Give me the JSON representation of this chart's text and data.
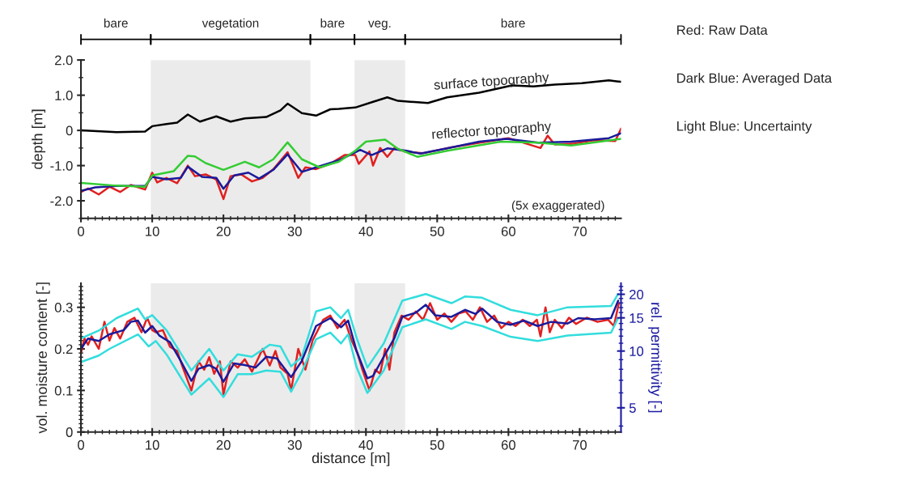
{
  "chart_data": [
    {
      "type": "line",
      "ylabel": "depth [m]",
      "xlim": [
        0,
        75.8
      ],
      "xticks": [
        0,
        10,
        20,
        30,
        40,
        50,
        60,
        70
      ],
      "ylim": [
        -2.5,
        2.0
      ],
      "yticks": [
        {
          "value": -2.0,
          "label": "-2.0"
        },
        {
          "value": -1.0,
          "label": "-1.0"
        },
        0,
        {
          "value": 1.0,
          "label": "1.0"
        },
        {
          "value": 2.0,
          "label": "2.0"
        }
      ],
      "bands": [
        {
          "axis": "x",
          "from": 9.8,
          "to": 32.2,
          "label": "vegetation",
          "color": "#ebebeb"
        },
        {
          "axis": "x",
          "from": 38.4,
          "to": 45.5,
          "label": "veg.",
          "color": "#ebebeb"
        }
      ],
      "annotations": [
        "bare",
        "bare",
        "bare",
        "surface topography",
        "reflector topography",
        "(5x exaggerated)"
      ],
      "series": [
        {
          "color": "#e02020",
          "x": [
            0,
            1,
            2.5,
            4,
            5.5,
            7,
            9,
            10,
            10.7,
            12,
            13.5,
            15,
            16,
            17.5,
            19,
            20,
            21,
            22.5,
            24,
            25.5,
            27,
            29,
            30.5,
            31.5,
            33,
            35,
            37,
            38.5,
            39,
            40.5,
            41,
            42,
            43,
            44,
            45.5,
            48,
            52,
            56,
            60,
            64.5,
            65.5,
            66.5,
            69,
            72,
            75,
            75.8
          ],
          "values": [
            -1.75,
            -1.65,
            -1.82,
            -1.6,
            -1.75,
            -1.55,
            -1.68,
            -1.2,
            -1.48,
            -1.35,
            -1.5,
            -1.0,
            -1.3,
            -1.25,
            -1.4,
            -1.95,
            -1.3,
            -1.25,
            -1.45,
            -1.35,
            -1.1,
            -0.62,
            -1.35,
            -1.05,
            -1.1,
            -0.95,
            -0.7,
            -0.7,
            -0.95,
            -0.6,
            -1.0,
            -0.5,
            -0.75,
            -0.5,
            -0.6,
            -0.65,
            -0.48,
            -0.35,
            -0.22,
            -0.5,
            -0.15,
            -0.4,
            -0.38,
            -0.28,
            -0.3,
            0.05
          ]
        },
        {
          "color": "#1a1a9a",
          "x": [
            0,
            2,
            5,
            9,
            10,
            12,
            14,
            15,
            17,
            19,
            20,
            21.5,
            23.5,
            25,
            27,
            29,
            31,
            33,
            36.2,
            39.2,
            40.8,
            43,
            45.7,
            47.6,
            51.4,
            55.9,
            59.7,
            64.2,
            68.8,
            74.1,
            75.8
          ],
          "values": [
            -1.72,
            -1.62,
            -1.58,
            -1.58,
            -1.32,
            -1.39,
            -1.35,
            -1.03,
            -1.32,
            -1.35,
            -1.66,
            -1.28,
            -1.2,
            -1.37,
            -1.12,
            -0.68,
            -1.18,
            -1.05,
            -0.85,
            -0.55,
            -0.7,
            -0.51,
            -0.58,
            -0.66,
            -0.51,
            -0.32,
            -0.24,
            -0.35,
            -0.32,
            -0.22,
            -0.08
          ]
        },
        {
          "color": "#33cc33",
          "x": [
            0,
            5,
            9,
            10,
            13,
            15,
            16,
            17.5,
            20,
            23,
            25,
            27,
            29,
            31,
            33.5,
            36.2,
            38.5,
            40,
            42.7,
            44.4,
            47.2,
            51.4,
            58.9,
            64.2,
            68.8,
            75.8
          ],
          "values": [
            -1.49,
            -1.57,
            -1.6,
            -1.28,
            -1.16,
            -0.72,
            -0.74,
            -0.93,
            -1.12,
            -0.89,
            -1.05,
            -0.82,
            -0.34,
            -0.82,
            -1.05,
            -0.89,
            -0.58,
            -0.32,
            -0.26,
            -0.51,
            -0.75,
            -0.58,
            -0.32,
            -0.35,
            -0.43,
            -0.24
          ]
        },
        {
          "color": "#000000",
          "x": [
            0,
            5,
            9,
            10,
            12,
            13.5,
            15,
            16.7,
            19,
            21,
            23,
            26,
            28,
            29,
            31,
            33,
            35,
            36.2,
            38.5,
            41.1,
            43,
            44.5,
            47.2,
            48.7,
            51.4,
            55.9,
            60.5,
            63.5,
            66.5,
            70.3,
            74.1,
            75.8
          ],
          "values": [
            0,
            -0.05,
            -0.03,
            0.12,
            0.18,
            0.22,
            0.45,
            0.25,
            0.4,
            0.25,
            0.34,
            0.38,
            0.57,
            0.76,
            0.49,
            0.42,
            0.6,
            0.61,
            0.65,
            0.82,
            0.94,
            0.84,
            0.8,
            0.78,
            0.94,
            1.07,
            1.28,
            1.25,
            1.3,
            1.34,
            1.42,
            1.38
          ]
        }
      ]
    },
    {
      "type": "line",
      "xlabel": "distance [m]",
      "ylabel": "vol. moisture content [-]",
      "y2label": "rel. permittivity [-]",
      "xlim": [
        0,
        75.8
      ],
      "xticks": [
        0,
        10,
        20,
        30,
        40,
        50,
        60,
        70
      ],
      "ylim": [
        0,
        0.358
      ],
      "yticks": [
        0,
        0.1,
        0.2,
        0.3
      ],
      "y2lim": [
        3.72,
        22.9
      ],
      "y2ticks": [
        5,
        10,
        15,
        20
      ],
      "log": "y2",
      "bands": [
        {
          "axis": "x",
          "from": 9.8,
          "to": 32.2,
          "color": "#ebebeb"
        },
        {
          "axis": "x",
          "from": 38.4,
          "to": 45.5,
          "color": "#ebebeb"
        }
      ],
      "series": [
        {
          "color": "#e02020",
          "x": [
            0,
            0.5,
            1,
            1.5,
            2.5,
            3.3,
            4,
            4.7,
            5.5,
            6.5,
            7.5,
            8.5,
            9.3,
            10,
            10.5,
            11.5,
            12.5,
            13.5,
            14.3,
            15.5,
            16.5,
            17.3,
            18,
            18.7,
            19.5,
            20,
            21,
            22,
            23,
            24,
            25.5,
            26.5,
            27.3,
            28,
            29,
            29.5,
            30.5,
            31.5,
            32.5,
            34,
            35,
            36,
            37,
            38,
            38.8,
            39.5,
            40.5,
            41.3,
            42,
            42.7,
            43.3,
            44,
            45,
            46,
            47,
            48,
            49,
            50,
            51,
            52,
            53,
            54,
            55,
            56,
            57,
            58,
            59,
            60,
            61,
            62,
            63,
            64,
            64.5,
            65.2,
            65.8,
            66.5,
            67.5,
            68.5,
            69.5,
            71,
            72.5,
            74,
            74.8,
            75.5
          ],
          "values": [
            0.19,
            0.225,
            0.21,
            0.23,
            0.2,
            0.265,
            0.22,
            0.25,
            0.225,
            0.265,
            0.275,
            0.24,
            0.275,
            0.245,
            0.24,
            0.245,
            0.205,
            0.195,
            0.155,
            0.1,
            0.17,
            0.15,
            0.18,
            0.14,
            0.17,
            0.09,
            0.17,
            0.155,
            0.175,
            0.145,
            0.2,
            0.16,
            0.195,
            0.155,
            0.14,
            0.1,
            0.2,
            0.15,
            0.22,
            0.27,
            0.28,
            0.25,
            0.27,
            0.22,
            0.19,
            0.15,
            0.1,
            0.15,
            0.14,
            0.2,
            0.15,
            0.24,
            0.28,
            0.27,
            0.29,
            0.27,
            0.31,
            0.27,
            0.285,
            0.265,
            0.285,
            0.29,
            0.27,
            0.3,
            0.265,
            0.28,
            0.25,
            0.265,
            0.255,
            0.27,
            0.255,
            0.27,
            0.23,
            0.3,
            0.24,
            0.27,
            0.25,
            0.275,
            0.26,
            0.275,
            0.265,
            0.27,
            0.255,
            0.31
          ]
        },
        {
          "color": "#33dddd",
          "x": [
            0,
            2.5,
            5,
            8,
            9,
            10,
            12,
            15.5,
            18,
            20,
            22,
            24,
            26.5,
            28,
            29.5,
            31,
            33,
            35,
            36.5,
            37.5,
            38.7,
            40.2,
            42.5,
            45.1,
            48.4,
            52,
            53.9,
            56.3,
            60.3,
            64.1,
            68.3,
            74.4,
            75.4
          ],
          "values": [
            0.225,
            0.244,
            0.274,
            0.297,
            0.271,
            0.281,
            0.245,
            0.148,
            0.2,
            0.148,
            0.187,
            0.181,
            0.21,
            0.206,
            0.158,
            0.181,
            0.29,
            0.3,
            0.274,
            0.294,
            0.226,
            0.155,
            0.213,
            0.316,
            0.332,
            0.31,
            0.326,
            0.323,
            0.294,
            0.281,
            0.3,
            0.303,
            0.332
          ]
        },
        {
          "color": "#33dddd",
          "x": [
            0,
            2.5,
            4,
            8,
            9.5,
            10.5,
            12,
            15.5,
            18,
            20,
            22,
            24,
            26,
            28,
            29.5,
            31,
            33,
            35,
            36.5,
            37.5,
            38.7,
            40.2,
            42.5,
            45.1,
            48.4,
            52,
            53.9,
            56.3,
            60.3,
            64.1,
            68.3,
            74.4,
            75.4
          ],
          "values": [
            0.168,
            0.184,
            0.2,
            0.235,
            0.206,
            0.219,
            0.187,
            0.09,
            0.129,
            0.084,
            0.139,
            0.139,
            0.148,
            0.145,
            0.097,
            0.145,
            0.223,
            0.239,
            0.213,
            0.235,
            0.155,
            0.094,
            0.148,
            0.252,
            0.271,
            0.248,
            0.265,
            0.255,
            0.229,
            0.219,
            0.232,
            0.239,
            0.274
          ]
        },
        {
          "color": "#1a1a9a",
          "x": [
            0,
            1,
            2.5,
            4,
            6,
            7,
            8,
            9,
            10,
            11,
            12.5,
            14,
            15.5,
            16.5,
            18,
            19,
            20,
            21.5,
            23,
            24.5,
            26,
            27.5,
            29.5,
            31,
            33,
            35,
            36.5,
            37.5,
            38.7,
            40.2,
            41,
            42.5,
            44,
            45.1,
            47,
            48.4,
            49.7,
            52,
            53.9,
            55.4,
            56.3,
            58.4,
            60.3,
            62.2,
            64.1,
            66,
            68.3,
            69.8,
            72.1,
            74.4,
            75.4
          ],
          "values": [
            0.2,
            0.225,
            0.219,
            0.235,
            0.245,
            0.265,
            0.268,
            0.239,
            0.255,
            0.232,
            0.216,
            0.171,
            0.123,
            0.152,
            0.161,
            0.152,
            0.121,
            0.165,
            0.161,
            0.155,
            0.181,
            0.177,
            0.132,
            0.171,
            0.255,
            0.274,
            0.252,
            0.268,
            0.194,
            0.129,
            0.135,
            0.181,
            0.226,
            0.277,
            0.287,
            0.306,
            0.281,
            0.277,
            0.294,
            0.284,
            0.297,
            0.265,
            0.258,
            0.268,
            0.255,
            0.265,
            0.261,
            0.274,
            0.271,
            0.274,
            0.316
          ]
        }
      ]
    },
    {
      "type": "other",
      "annotations": [
        "Red: Raw Data",
        "Dark Blue: Averaged Data",
        "Light Blue: Uncertainty"
      ]
    }
  ]
}
